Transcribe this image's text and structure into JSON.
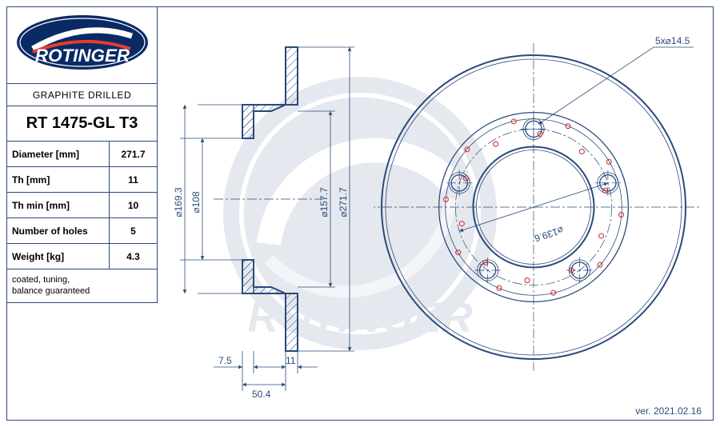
{
  "brand": "ROTINGER",
  "logo": {
    "bg": "#0a2a66",
    "fg": "#ffffff",
    "accent": "#e63b2e"
  },
  "subtitle": "GRAPHITE DRILLED",
  "part_number": "RT 1475-GL T3",
  "specs": [
    {
      "label": "Diameter [mm]",
      "value": "271.7"
    },
    {
      "label": "Th [mm]",
      "value": "11"
    },
    {
      "label": "Th min [mm]",
      "value": "10"
    },
    {
      "label": "Number of holes",
      "value": "5"
    },
    {
      "label": "Weight [kg]",
      "value": "4.3"
    }
  ],
  "note": "coated, tuning,\nbalance guaranteed",
  "version": "ver. 2021.02.16",
  "colors": {
    "line": "#2a4a7a",
    "background": "#ffffff",
    "red": "#d02020"
  },
  "side_view": {
    "dimensions": {
      "d169_3": "⌀169.3",
      "d108": "⌀108",
      "d157_7": "⌀157.7",
      "d271_7": "⌀271.7",
      "w7_5": "7.5",
      "w11": "11",
      "w50_4": "50.4"
    }
  },
  "front_view": {
    "bolt_note": "5x⌀14.5",
    "bolt_circle_dia": "⌀139.6",
    "outer_d": 271.7,
    "hub_face_d": 169.3,
    "bore_d": 108,
    "bolt_circle": 139.6,
    "bolt_hole_d": 14.5,
    "bolt_count": 5,
    "drill_rings": [
      {
        "r": 110,
        "count": 10,
        "offset_deg": 5
      },
      {
        "r": 92,
        "count": 10,
        "offset_deg": 23
      }
    ],
    "drill_hole_d": 4
  }
}
